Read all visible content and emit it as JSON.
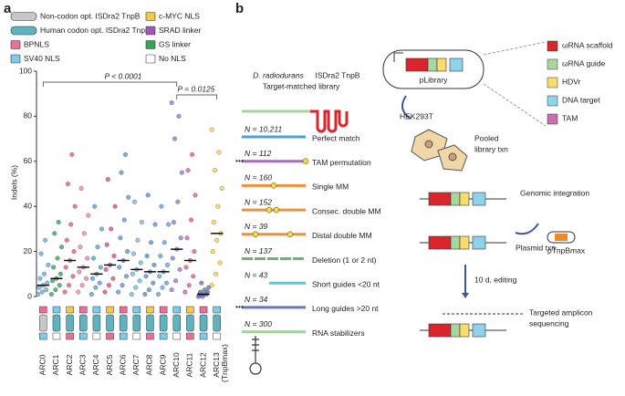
{
  "panel_labels": [
    "a",
    "b"
  ],
  "chart_data": {
    "type": "strip",
    "y_label": "Indels (%)",
    "ylim": [
      0,
      100
    ],
    "yticks": [
      0,
      20,
      40,
      60,
      80,
      100
    ],
    "categories": [
      "ARC0",
      "ARC1",
      "ARC2",
      "ARC3",
      "ARC4",
      "ARC5",
      "ARC6",
      "ARC7",
      "ARC8",
      "ARC9",
      "ARC10",
      "ARC11",
      "ARC12",
      "ARC13"
    ],
    "category_note": "(TnpBmax)",
    "colors": [
      "#5aaedc",
      "#2fa05a",
      "#e2577a",
      "#e886a6",
      "#4b9fd6",
      "#d9456e",
      "#5b8fd0",
      "#72b7e2",
      "#4f8ccd",
      "#5f9fd8",
      "#7a7fd0",
      "#e05a80",
      "#5a6fb0",
      "#f2d44a"
    ],
    "points": [
      [
        1,
        2,
        3,
        4,
        5,
        6,
        8,
        10,
        14,
        19,
        25
      ],
      [
        1,
        3,
        5,
        7,
        8,
        10,
        13,
        17,
        22,
        28,
        33
      ],
      [
        2,
        5,
        9,
        13,
        16,
        20,
        25,
        32,
        40,
        50,
        63
      ],
      [
        2,
        5,
        8,
        11,
        13,
        17,
        22,
        28,
        36,
        48
      ],
      [
        1,
        4,
        6,
        8,
        10,
        13,
        17,
        22,
        30,
        40
      ],
      [
        2,
        5,
        8,
        12,
        14,
        18,
        23,
        30,
        40,
        52
      ],
      [
        2,
        5,
        9,
        13,
        16,
        20,
        26,
        34,
        44,
        55,
        63
      ],
      [
        1,
        4,
        7,
        10,
        12,
        15,
        19,
        25,
        33,
        42
      ],
      [
        1,
        3,
        6,
        9,
        11,
        14,
        18,
        24,
        32,
        45
      ],
      [
        1,
        4,
        6,
        9,
        11,
        14,
        18,
        24,
        32,
        40
      ],
      [
        3,
        7,
        12,
        17,
        21,
        26,
        33,
        42,
        55,
        70,
        80,
        86
      ],
      [
        2,
        5,
        9,
        13,
        16,
        20,
        26,
        34,
        45,
        56,
        63
      ],
      [
        0,
        0,
        1,
        1,
        1,
        2,
        2,
        3,
        4,
        6
      ],
      [
        5,
        10,
        15,
        20,
        25,
        28,
        33,
        40,
        48,
        56,
        64,
        74
      ]
    ],
    "values": [
      5,
      8,
      16,
      13,
      10,
      14,
      16,
      12,
      11,
      11,
      21,
      16,
      1,
      28
    ],
    "legend": [
      {
        "name": "Non-codon opt. ISDra2 TnpB",
        "color": "#c8c8c8"
      },
      {
        "name": "c-MYC NLS",
        "color": "#f2c94c"
      },
      {
        "name": "Human codon opt. ISDra2 TnpB",
        "color": "#5fb3bf"
      },
      {
        "name": "SRAD linker",
        "color": "#9b59b6"
      },
      {
        "name": "BPNLS",
        "color": "#e8709a"
      },
      {
        "name": "GS linker",
        "color": "#3aa05a"
      },
      {
        "name": "SV40 NLS",
        "color": "#7ccbe8"
      },
      {
        "name": "No NLS",
        "color": "#ffffff"
      }
    ],
    "annotations": [
      "P < 0.0001",
      "P = 0.0125"
    ]
  },
  "library": {
    "title_italic": "D. radiodurans",
    "title": "ISDra2 TnpB",
    "subtitle": "Target-matched library",
    "rows": [
      {
        "n": "N = 10,211",
        "label": "Perfect match",
        "color": "#4aa3df"
      },
      {
        "n": "N = 112",
        "label": "TAM permutation",
        "color": "#a66fb5"
      },
      {
        "n": "N = 160",
        "label": "Single MM",
        "color": "#f0903a"
      },
      {
        "n": "N = 152",
        "label": "Consec. double MM",
        "color": "#f0903a"
      },
      {
        "n": "N = 39",
        "label": "Distal double MM",
        "color": "#f0903a"
      },
      {
        "n": "N = 137",
        "label": "Deletion (1 or 2 nt)",
        "color": "#7fa87f"
      },
      {
        "n": "N = 43",
        "label": "Short guides <20 nt",
        "color": "#5cc6e0"
      },
      {
        "n": "N = 34",
        "label": "Long guides >20 nt",
        "color": "#6a78b8"
      },
      {
        "n": "N = 300",
        "label": "RNA stabilizers",
        "color": "#9ed69a"
      }
    ]
  },
  "workflow": {
    "plasmid": "pLibrary",
    "legend": [
      {
        "name": "ωRNA scaffold",
        "color": "#d7262e"
      },
      {
        "name": "ωRNA guide",
        "color": "#a9d6a0"
      },
      {
        "name": "HDVr",
        "color": "#f7dc6f"
      },
      {
        "name": "DNA target",
        "color": "#8fd3ea"
      },
      {
        "name": "TAM",
        "color": "#c96fb0"
      }
    ],
    "steps": [
      "HEK293T",
      "Pooled",
      "library txn",
      "Genomic integration",
      "pTnpBmax",
      "Plasmid txn",
      "10 d, editing",
      "Targeted amplicon",
      "sequencing"
    ]
  }
}
